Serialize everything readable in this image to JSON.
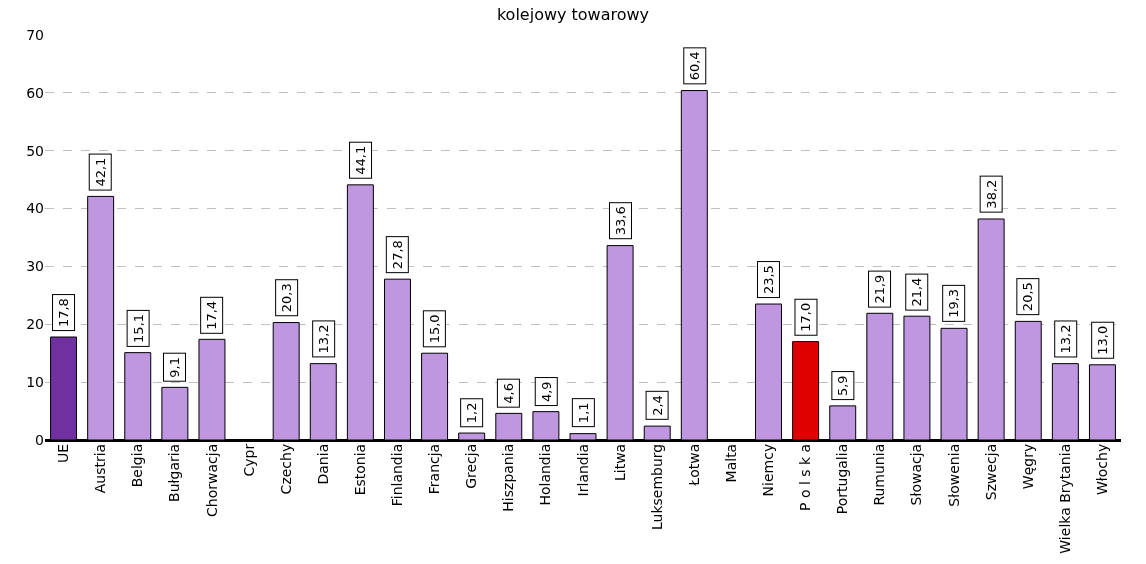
{
  "chart_data": {
    "type": "bar",
    "title": "kolejowy towarowy",
    "categories": [
      "UE",
      "Austria",
      "Belgia",
      "Bułgaria",
      "Chorwacja",
      "Cypr",
      "Czechy",
      "Dania",
      "Estonia",
      "Finlandia",
      "Francja",
      "Grecja",
      "Hiszpania",
      "Holandia",
      "Irlandia",
      "Litwa",
      "Luksemburg",
      "Łotwa",
      "Malta",
      "Niemcy",
      "P o l s k a",
      "Portugalia",
      "Rumunia",
      "Słowacja",
      "Słowenia",
      "Szwecja",
      "Węgry",
      "Wielka Brytania",
      "Włochy"
    ],
    "values": [
      17.8,
      42.1,
      15.1,
      9.1,
      17.4,
      null,
      20.3,
      13.2,
      44.1,
      27.8,
      15.0,
      1.2,
      4.6,
      4.9,
      1.1,
      33.6,
      2.4,
      60.4,
      null,
      23.5,
      17.0,
      5.9,
      21.9,
      21.4,
      19.3,
      38.2,
      20.5,
      13.2,
      13.0
    ],
    "value_labels": [
      "17,8",
      "42,1",
      "15,1",
      "9,1",
      "17,4",
      null,
      "20,3",
      "13,2",
      "44,1",
      "27,8",
      "15,0",
      "1,2",
      "4,6",
      "4,9",
      "1,1",
      "33,6",
      "2,4",
      "60,4",
      null,
      "23,5",
      "17,0",
      "5,9",
      "21,9",
      "21,4",
      "19,3",
      "38,2",
      "20,5",
      "13,2",
      "13,0"
    ],
    "colors": [
      "#7030a0",
      "#bf96e0",
      "#bf96e0",
      "#bf96e0",
      "#bf96e0",
      "#bf96e0",
      "#bf96e0",
      "#bf96e0",
      "#bf96e0",
      "#bf96e0",
      "#bf96e0",
      "#bf96e0",
      "#bf96e0",
      "#bf96e0",
      "#bf96e0",
      "#bf96e0",
      "#bf96e0",
      "#bf96e0",
      "#bf96e0",
      "#bf96e0",
      "#e00000",
      "#bf96e0",
      "#bf96e0",
      "#bf96e0",
      "#bf96e0",
      "#bf96e0",
      "#bf96e0",
      "#bf96e0",
      "#bf96e0"
    ],
    "ylim": [
      0,
      70
    ],
    "yticks": [
      0,
      10,
      20,
      30,
      40,
      50,
      60,
      70
    ],
    "grid": "y"
  }
}
